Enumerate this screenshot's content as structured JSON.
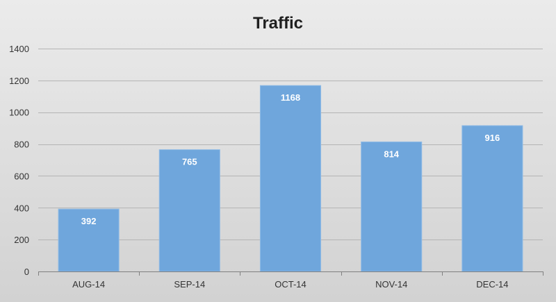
{
  "chart_data": {
    "type": "bar",
    "title": "Traffic",
    "categories": [
      "AUG-14",
      "SEP-14",
      "OCT-14",
      "NOV-14",
      "DEC-14"
    ],
    "values": [
      392,
      765,
      1168,
      814,
      916
    ],
    "ylim": [
      0,
      1400
    ],
    "yticks": [
      0,
      200,
      400,
      600,
      800,
      1000,
      1200,
      1400
    ],
    "grid": true,
    "legend": "none",
    "data_labels": true,
    "colors": {
      "bar": "#6fa6dc",
      "bar_edge": "#8fbbe6",
      "background_top": "#ebebeb",
      "background_bottom": "#d2d2d2",
      "grid": "#b4b4b4",
      "axis": "#808080"
    }
  }
}
